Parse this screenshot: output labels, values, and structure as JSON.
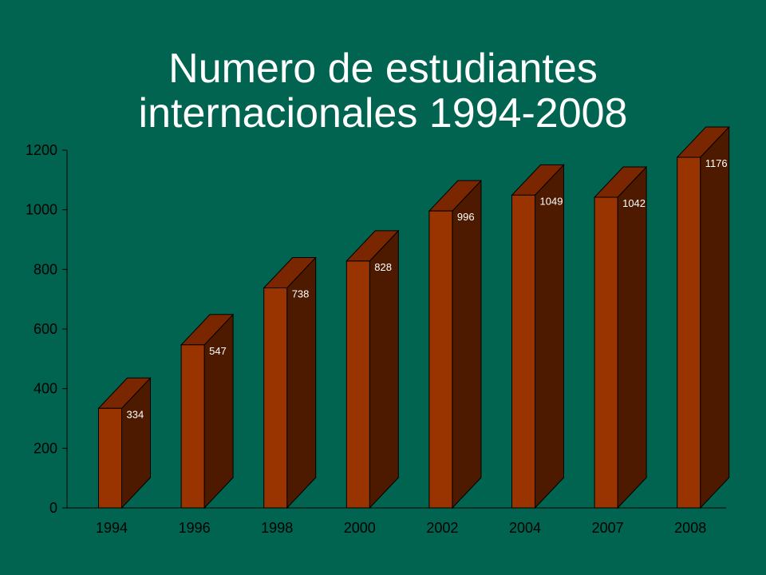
{
  "title": {
    "line1": "Numero de estudiantes",
    "line2": "internacionales 1994-2008"
  },
  "colors": {
    "background": "#006450",
    "bar_front": "#993300",
    "bar_side": "#4D1A00",
    "bar_top": "#7A2600",
    "axis": "#000000",
    "label_text": "#ffffff"
  },
  "chart_data": {
    "type": "bar",
    "categories": [
      "1994",
      "1996",
      "1998",
      "2000",
      "2002",
      "2004",
      "2007",
      "2008"
    ],
    "values": [
      334,
      547,
      738,
      828,
      996,
      1049,
      1042,
      1176
    ],
    "title": "Numero de estudiantes internacionales 1994-2008",
    "xlabel": "",
    "ylabel": "",
    "ylim": [
      0,
      1200
    ],
    "yticks": [
      0,
      200,
      400,
      600,
      800,
      1000,
      1200
    ],
    "grid": false,
    "legend": "none",
    "style": "3d"
  }
}
